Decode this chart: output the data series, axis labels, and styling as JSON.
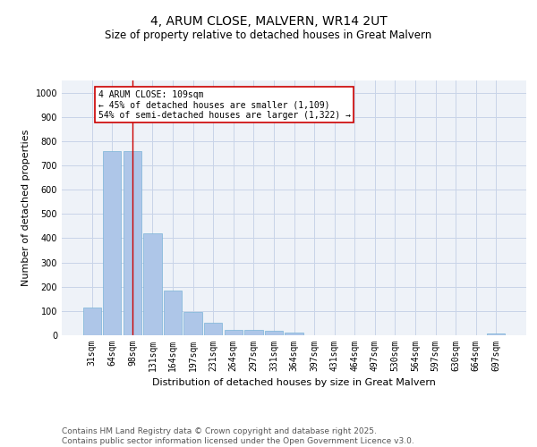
{
  "title1": "4, ARUM CLOSE, MALVERN, WR14 2UT",
  "title2": "Size of property relative to detached houses in Great Malvern",
  "xlabel": "Distribution of detached houses by size in Great Malvern",
  "ylabel": "Number of detached properties",
  "categories": [
    "31sqm",
    "64sqm",
    "98sqm",
    "131sqm",
    "164sqm",
    "197sqm",
    "231sqm",
    "264sqm",
    "297sqm",
    "331sqm",
    "364sqm",
    "397sqm",
    "431sqm",
    "464sqm",
    "497sqm",
    "530sqm",
    "564sqm",
    "597sqm",
    "630sqm",
    "664sqm",
    "697sqm"
  ],
  "values": [
    115,
    760,
    760,
    420,
    185,
    95,
    50,
    22,
    22,
    18,
    12,
    0,
    0,
    0,
    0,
    0,
    0,
    0,
    0,
    0,
    8
  ],
  "bar_color": "#aec6e8",
  "bar_edge_color": "#7ab4d8",
  "grid_color": "#c8d4e8",
  "bg_color": "#eef2f8",
  "annotation_box_text": "4 ARUM CLOSE: 109sqm\n← 45% of detached houses are smaller (1,109)\n54% of semi-detached houses are larger (1,322) →",
  "vline_x": 2,
  "vline_color": "#cc0000",
  "ylim": [
    0,
    1050
  ],
  "yticks": [
    0,
    100,
    200,
    300,
    400,
    500,
    600,
    700,
    800,
    900,
    1000
  ],
  "footer": "Contains HM Land Registry data © Crown copyright and database right 2025.\nContains public sector information licensed under the Open Government Licence v3.0.",
  "title_fontsize": 10,
  "subtitle_fontsize": 8.5,
  "axis_label_fontsize": 8,
  "tick_fontsize": 7,
  "footer_fontsize": 6.5
}
